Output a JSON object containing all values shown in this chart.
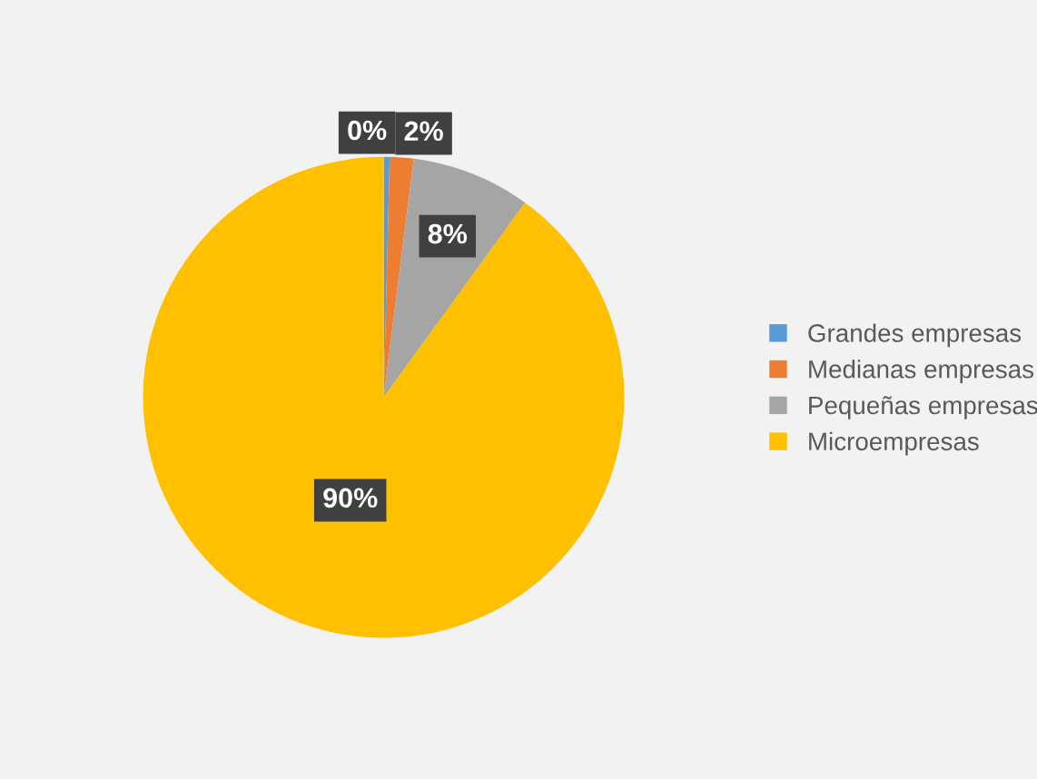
{
  "chart_data": {
    "type": "pie",
    "categories": [
      "Grandes empresas",
      "Medianas empresas",
      "Pequeñas empresas",
      "Microempresas"
    ],
    "values": [
      0.4,
      1.6,
      8,
      90
    ],
    "colors": [
      "#5b9bd5",
      "#ed7d31",
      "#a5a5a5",
      "#ffc000"
    ],
    "value_labels": [
      "0%",
      "2%",
      "8%",
      "90%"
    ],
    "legend": "right"
  }
}
